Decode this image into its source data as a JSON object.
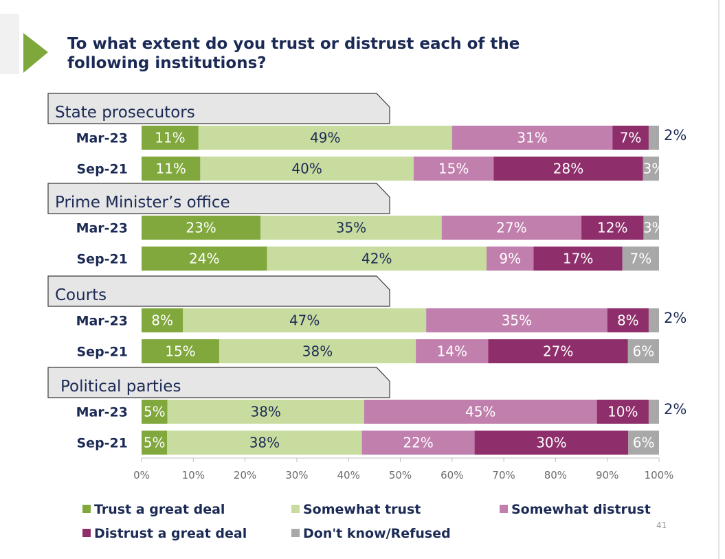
{
  "title": "To what extent do you trust or distrust each of the following institutions?",
  "page_number": "41",
  "colors": {
    "accent_green": "#7ea73c",
    "trust_great_deal": "#80a83c",
    "somewhat_trust": "#c9dca0",
    "somewhat_distrust": "#c17fad",
    "distrust_great_deal": "#8e2e6a",
    "dont_know": "#a8a8a8",
    "header_box": "#e6e6e6",
    "text": "#1b2a55"
  },
  "chart_data": {
    "type": "bar",
    "orientation": "horizontal",
    "stacked": true,
    "xlim": [
      0,
      100
    ],
    "x_tick_labels": [
      "0%",
      "10%",
      "20%",
      "30%",
      "40%",
      "50%",
      "60%",
      "70%",
      "80%",
      "90%",
      "100%"
    ],
    "series_names": [
      "Trust a great deal",
      "Somewhat trust",
      "Somewhat distrust",
      "Distrust a great deal",
      "Don't know/Refused"
    ],
    "groups": [
      {
        "name": "State prosecutors",
        "rows": [
          {
            "label": "Mar-23",
            "values": [
              11,
              49,
              31,
              7,
              2
            ]
          },
          {
            "label": "Sep-21",
            "values": [
              11,
              40,
              15,
              28,
              3
            ]
          }
        ]
      },
      {
        "name": "Prime Minister’s office",
        "rows": [
          {
            "label": "Mar-23",
            "values": [
              23,
              35,
              27,
              12,
              3
            ]
          },
          {
            "label": "Sep-21",
            "values": [
              24,
              42,
              9,
              17,
              7
            ]
          }
        ]
      },
      {
        "name": "Courts",
        "rows": [
          {
            "label": "Mar-23",
            "values": [
              8,
              47,
              35,
              8,
              2
            ]
          },
          {
            "label": "Sep-21",
            "values": [
              15,
              38,
              14,
              27,
              6
            ]
          }
        ]
      },
      {
        "name": "Political parties",
        "rows": [
          {
            "label": "Mar-23",
            "values": [
              5,
              38,
              45,
              10,
              2
            ]
          },
          {
            "label": "Sep-21",
            "values": [
              5,
              38,
              22,
              30,
              6
            ]
          }
        ]
      }
    ],
    "grid": false,
    "legend_position": "bottom"
  }
}
